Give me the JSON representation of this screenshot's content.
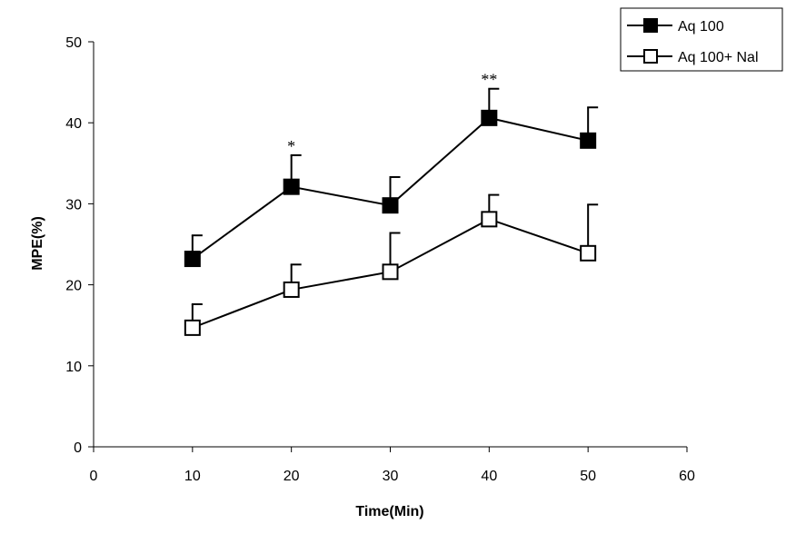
{
  "chart_data": {
    "type": "line",
    "title": "",
    "xlabel": "Time(Min)",
    "ylabel": "MPE(%)",
    "xlim": [
      0,
      60
    ],
    "ylim": [
      0,
      50
    ],
    "x_ticks": [
      0,
      10,
      20,
      30,
      40,
      50,
      60
    ],
    "y_ticks": [
      0,
      10,
      20,
      30,
      40,
      50
    ],
    "grid": false,
    "legend_position": "top-right",
    "x": [
      10,
      20,
      30,
      40,
      50
    ],
    "series": [
      {
        "name": "Aq 100",
        "marker": "filled-square",
        "values": [
          23.2,
          32.1,
          29.8,
          40.6,
          37.8
        ],
        "error_upper": [
          2.9,
          3.9,
          3.5,
          3.6,
          4.1
        ]
      },
      {
        "name": "Aq 100+ Nal",
        "marker": "open-square",
        "values": [
          14.7,
          19.4,
          21.6,
          28.1,
          23.9
        ],
        "error_upper": [
          2.9,
          3.1,
          4.8,
          3.0,
          6.0
        ]
      }
    ],
    "annotations": [
      {
        "text": "*",
        "x": 20,
        "y": 36.0
      },
      {
        "text": "**",
        "x": 40,
        "y": 44.2
      }
    ],
    "colors": {
      "line": "#000000",
      "marker_fill": "#000000",
      "marker_open": "#ffffff"
    }
  }
}
